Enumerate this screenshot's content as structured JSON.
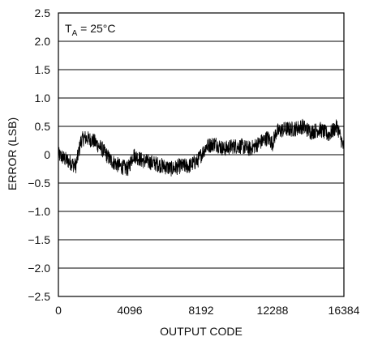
{
  "chart_data": {
    "type": "line",
    "title": "",
    "xlabel": "OUTPUT CODE",
    "ylabel": "ERROR (LSB)",
    "xlim": [
      0,
      16384
    ],
    "ylim": [
      -2.5,
      2.5
    ],
    "x_ticks": [
      0,
      4096,
      8192,
      12288,
      16384
    ],
    "x_tick_labels": [
      "0",
      "4096",
      "8192",
      "12288",
      "16384"
    ],
    "y_ticks": [
      2.5,
      2.0,
      1.5,
      1.0,
      0.5,
      0,
      -0.5,
      -1.0,
      -1.5,
      -2.0,
      -2.5
    ],
    "y_tick_labels": [
      "2.5",
      "2.0",
      "1.5",
      "1.0",
      "0.5",
      "0",
      "−0.5",
      "−1.0",
      "−1.5",
      "−2.0",
      "−2.5"
    ],
    "grid": "horizontal",
    "annotation": {
      "prefix": "T",
      "subscript": "A",
      "suffix": " = 25°C"
    },
    "line_color": "#000000",
    "series": [
      {
        "x": [
          0,
          500,
          1000,
          1300,
          1500,
          2000,
          2500,
          3000,
          3500,
          4000,
          4300,
          4800,
          5500,
          6000,
          6500,
          7000,
          7500,
          8000,
          8192,
          8500,
          9000,
          9500,
          10000,
          10500,
          11000,
          11500,
          12000,
          12288,
          12500,
          13000,
          13500,
          14000,
          14500,
          15000,
          15500,
          16000,
          16384
        ],
        "y": [
          0.0,
          -0.1,
          -0.2,
          0.25,
          0.3,
          0.25,
          0.1,
          -0.1,
          -0.2,
          -0.25,
          0.0,
          -0.1,
          -0.15,
          -0.2,
          -0.25,
          -0.2,
          -0.2,
          -0.1,
          0.0,
          0.15,
          0.2,
          0.1,
          0.15,
          0.15,
          0.1,
          0.2,
          0.3,
          0.2,
          0.4,
          0.45,
          0.45,
          0.5,
          0.4,
          0.45,
          0.35,
          0.5,
          0.1
        ]
      }
    ]
  }
}
